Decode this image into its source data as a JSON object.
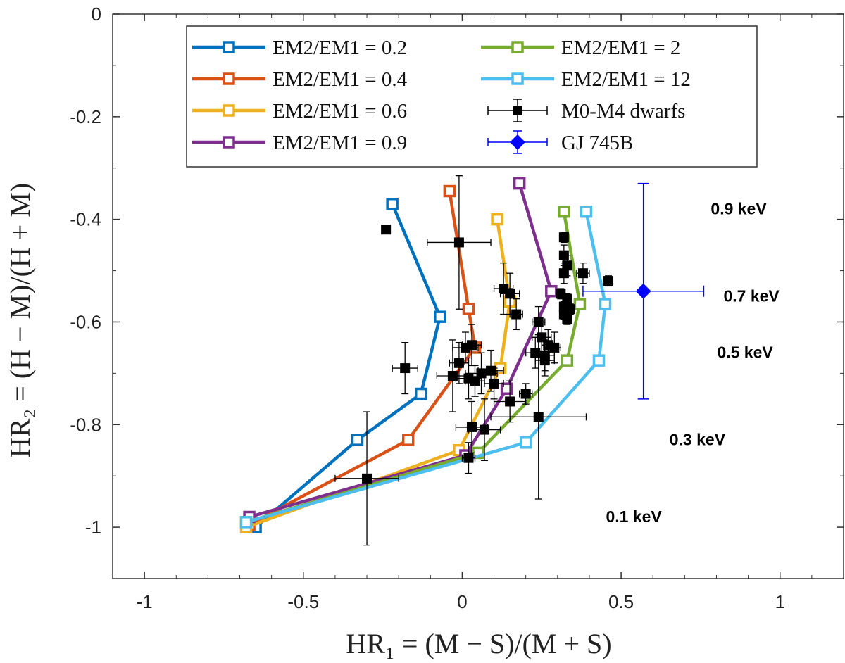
{
  "chart_data": {
    "type": "line",
    "xlabel": "HR₁ = (M − S)/(M + S)",
    "ylabel": "HR₂ = (H − M)/(H + M)",
    "xlim": [
      -1.1,
      1.2
    ],
    "ylim": [
      -1.1,
      0
    ],
    "xticks": [
      -1,
      -0.5,
      0,
      0.5,
      1
    ],
    "yticks": [
      0,
      -0.2,
      -0.4,
      -0.6,
      -0.8,
      -1
    ],
    "xtick_labels": [
      "-1",
      "-0.5",
      "0",
      "0.5",
      "1"
    ],
    "ytick_labels": [
      "0",
      "-0.2",
      "-0.4",
      "-0.6",
      "-0.8",
      "-1"
    ],
    "legend_position": "top",
    "series": [
      {
        "name": "EM2/EM1 = 0.2",
        "color": "#0072BD",
        "x": [
          -0.65,
          -0.33,
          -0.13,
          -0.07,
          -0.22
        ],
        "y": [
          -1.0,
          -0.83,
          -0.74,
          -0.59,
          -0.37
        ]
      },
      {
        "name": "EM2/EM1 = 0.4",
        "color": "#D95319",
        "x": [
          -0.67,
          -0.17,
          0.04,
          0.02,
          -0.04
        ],
        "y": [
          -0.995,
          -0.83,
          -0.65,
          -0.575,
          -0.345
        ]
      },
      {
        "name": "EM2/EM1 = 0.6",
        "color": "#EDB120",
        "x": [
          -0.68,
          -0.01,
          0.12,
          0.15,
          0.11
        ],
        "y": [
          -1.0,
          -0.85,
          -0.69,
          -0.56,
          -0.4
        ]
      },
      {
        "name": "EM2/EM1 = 0.9",
        "color": "#7E2F8E",
        "x": [
          -0.67,
          0.01,
          0.14,
          0.28,
          0.18
        ],
        "y": [
          -0.98,
          -0.86,
          -0.73,
          -0.54,
          -0.33
        ]
      },
      {
        "name": "EM2/EM1 = 2",
        "color": "#77AC30",
        "x": [
          -0.68,
          0.05,
          0.33,
          0.37,
          0.32
        ],
        "y": [
          -0.99,
          -0.855,
          -0.675,
          -0.565,
          -0.385
        ]
      },
      {
        "name": "EM2/EM1 = 12",
        "color": "#4DBEEE",
        "x": [
          -0.68,
          0.2,
          0.43,
          0.45,
          0.39
        ],
        "y": [
          -0.99,
          -0.835,
          -0.675,
          -0.565,
          -0.385
        ]
      }
    ],
    "scatter_series": [
      {
        "name": "M0-M4 dwarfs",
        "color": "#000000",
        "points": [
          {
            "x": -0.01,
            "y": -0.445,
            "xerr": 0.1,
            "yerr": 0.13
          },
          {
            "x": -0.24,
            "y": -0.42,
            "xerr": 0,
            "yerr": 0
          },
          {
            "x": -0.18,
            "y": -0.69,
            "xerr": 0.04,
            "yerr": 0.05
          },
          {
            "x": -0.03,
            "y": -0.705,
            "xerr": 0.05,
            "yerr": 0.07
          },
          {
            "x": -0.01,
            "y": -0.68,
            "xerr": 0.03,
            "yerr": 0.04
          },
          {
            "x": 0.01,
            "y": -0.65,
            "xerr": 0.04,
            "yerr": 0.03
          },
          {
            "x": 0.03,
            "y": -0.645,
            "xerr": 0.03,
            "yerr": 0.04
          },
          {
            "x": 0.02,
            "y": -0.71,
            "xerr": 0.04,
            "yerr": 0.04
          },
          {
            "x": 0.04,
            "y": -0.715,
            "xerr": 0.03,
            "yerr": 0.03
          },
          {
            "x": 0.06,
            "y": -0.7,
            "xerr": 0.05,
            "yerr": 0.04
          },
          {
            "x": 0.09,
            "y": -0.695,
            "xerr": 0.04,
            "yerr": 0.04
          },
          {
            "x": 0.1,
            "y": -0.72,
            "xerr": 0.03,
            "yerr": 0.03
          },
          {
            "x": 0.07,
            "y": -0.81,
            "xerr": 0.05,
            "yerr": 0.06
          },
          {
            "x": 0.03,
            "y": -0.805,
            "xerr": 0.05,
            "yerr": 0.05
          },
          {
            "x": 0.02,
            "y": -0.865,
            "xerr": 0.02,
            "yerr": 0.03
          },
          {
            "x": -0.3,
            "y": -0.905,
            "xerr": 0.1,
            "yerr": 0.13
          },
          {
            "x": 0.13,
            "y": -0.535,
            "xerr": 0.03,
            "yerr": 0.05
          },
          {
            "x": 0.15,
            "y": -0.545,
            "xerr": 0.03,
            "yerr": 0.04
          },
          {
            "x": 0.17,
            "y": -0.585,
            "xerr": 0.02,
            "yerr": 0.03
          },
          {
            "x": 0.15,
            "y": -0.755,
            "xerr": 0.05,
            "yerr": 0.04
          },
          {
            "x": 0.2,
            "y": -0.74,
            "xerr": 0.02,
            "yerr": 0.02
          },
          {
            "x": 0.24,
            "y": -0.6,
            "xerr": 0.02,
            "yerr": 0.03
          },
          {
            "x": 0.25,
            "y": -0.63,
            "xerr": 0.03,
            "yerr": 0.03
          },
          {
            "x": 0.23,
            "y": -0.66,
            "xerr": 0.03,
            "yerr": 0.03
          },
          {
            "x": 0.26,
            "y": -0.665,
            "xerr": 0.03,
            "yerr": 0.03
          },
          {
            "x": 0.27,
            "y": -0.645,
            "xerr": 0.02,
            "yerr": 0.03
          },
          {
            "x": 0.29,
            "y": -0.65,
            "xerr": 0.02,
            "yerr": 0.03
          },
          {
            "x": 0.26,
            "y": -0.675,
            "xerr": 0.03,
            "yerr": 0.03
          },
          {
            "x": 0.24,
            "y": -0.785,
            "xerr": 0.15,
            "yerr": 0.16
          },
          {
            "x": 0.32,
            "y": -0.435,
            "xerr": 0.01,
            "yerr": 0.01
          },
          {
            "x": 0.32,
            "y": -0.47,
            "xerr": 0.01,
            "yerr": 0.02
          },
          {
            "x": 0.33,
            "y": -0.49,
            "xerr": 0.01,
            "yerr": 0.02
          },
          {
            "x": 0.32,
            "y": -0.505,
            "xerr": 0.01,
            "yerr": 0.02
          },
          {
            "x": 0.38,
            "y": -0.505,
            "xerr": 0.02,
            "yerr": 0.02
          },
          {
            "x": 0.46,
            "y": -0.52,
            "xerr": 0.01,
            "yerr": 0.01
          },
          {
            "x": 0.31,
            "y": -0.545,
            "xerr": 0.01,
            "yerr": 0.01
          },
          {
            "x": 0.33,
            "y": -0.555,
            "xerr": 0.01,
            "yerr": 0.01
          },
          {
            "x": 0.32,
            "y": -0.57,
            "xerr": 0.01,
            "yerr": 0.01
          },
          {
            "x": 0.34,
            "y": -0.575,
            "xerr": 0.01,
            "yerr": 0.01
          },
          {
            "x": 0.32,
            "y": -0.585,
            "xerr": 0.01,
            "yerr": 0.01
          },
          {
            "x": 0.33,
            "y": -0.595,
            "xerr": 0.01,
            "yerr": 0.01
          }
        ]
      },
      {
        "name": "GJ 745B",
        "color": "#0000FF",
        "marker": "diamond",
        "points": [
          {
            "x": 0.57,
            "y": -0.54,
            "xerr": 0.19,
            "yerr": 0.21
          }
        ]
      }
    ],
    "annotations": [
      {
        "text": "0.9 keV",
        "x": 0.87,
        "y": -0.39
      },
      {
        "text": "0.7 keV",
        "x": 0.91,
        "y": -0.56
      },
      {
        "text": "0.5 keV",
        "x": 0.89,
        "y": -0.67
      },
      {
        "text": "0.3 keV",
        "x": 0.74,
        "y": -0.84
      },
      {
        "text": "0.1 keV",
        "x": 0.54,
        "y": -0.99
      }
    ]
  }
}
